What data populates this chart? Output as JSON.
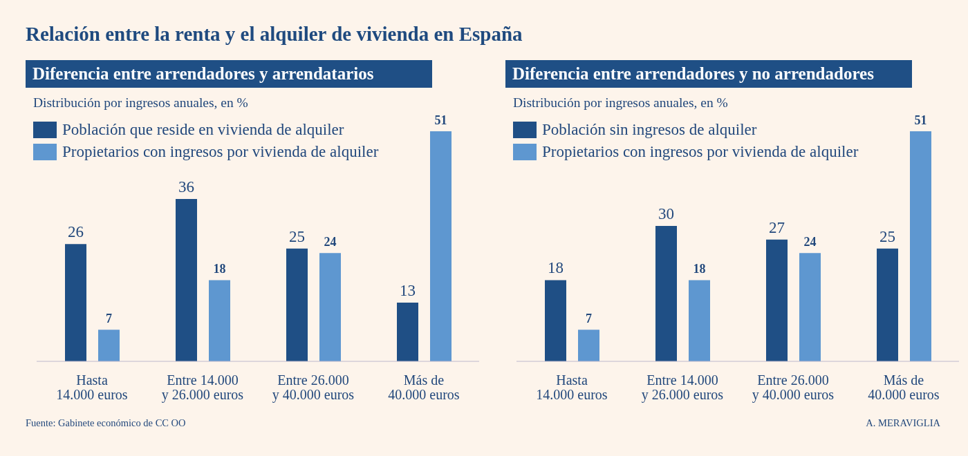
{
  "chart_data": [
    {
      "type": "bar",
      "title": "Diferencia entre arrendadores y arrendatarios",
      "subtitle": "Distribución por ingresos anuales, en %",
      "categories": [
        "Hasta\n14.000 euros",
        "Entre 14.000\ny 26.000 euros",
        "Entre 26.000\ny 40.000 euros",
        "Más de\n40.000 euros"
      ],
      "series": [
        {
          "name": "Población que reside en vivienda de alquiler",
          "color": "#1f4f85",
          "values": [
            26,
            36,
            25,
            13
          ]
        },
        {
          "name": "Propietarios con ingresos por vivienda de alquiler",
          "color": "#5e97d0",
          "values": [
            7,
            18,
            24,
            51
          ]
        }
      ],
      "data_labels": true,
      "legend": "top left",
      "annotations": [
        "Relación entre la renta y el alquiler de vivienda en España",
        "Fuente: Gabinete económico de CC OO"
      ]
    },
    {
      "type": "bar",
      "title": "Diferencia entre arrendadores y no arrendadores",
      "subtitle": "Distribución por ingresos anuales, en %",
      "categories": [
        "Hasta\n14.000 euros",
        "Entre 14.000\ny 26.000 euros",
        "Entre 26.000\ny 40.000 euros",
        "Más de\n40.000 euros"
      ],
      "series": [
        {
          "name": "Población sin ingresos de alquiler",
          "color": "#1f4f85",
          "values": [
            18,
            30,
            27,
            25
          ]
        },
        {
          "name": "Propietarios con ingresos por vivienda de alquiler",
          "color": "#5e97d0",
          "values": [
            7,
            18,
            24,
            51
          ]
        }
      ],
      "data_labels": true,
      "legend": "top left",
      "annotations": [
        "A. MERAVIGLIA"
      ]
    }
  ]
}
